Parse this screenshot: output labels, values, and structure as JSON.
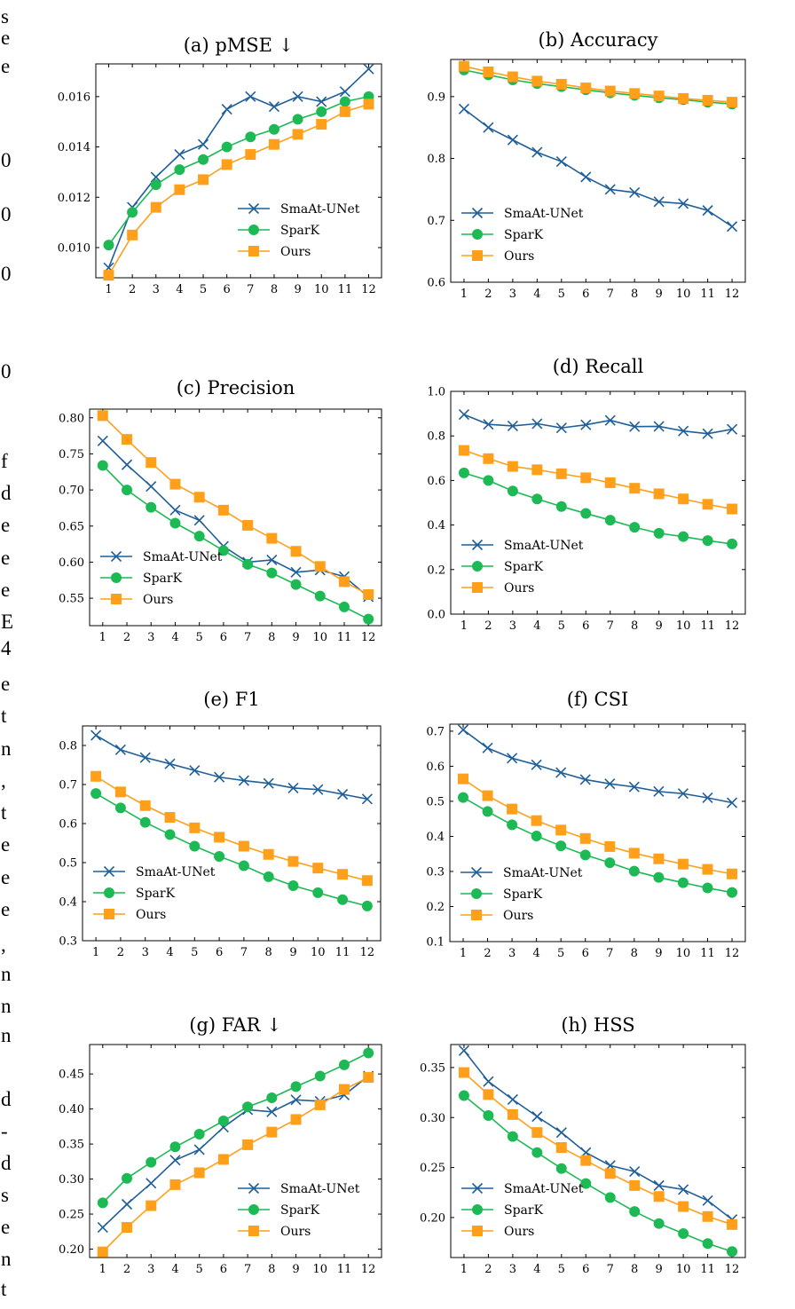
{
  "margin_text": [
    "s",
    "e",
    "e",
    "0",
    "0",
    "0",
    "0",
    "f",
    "d",
    "e",
    "e",
    "e",
    "E",
    "4",
    "e",
    "t",
    "n",
    ",",
    "t",
    "e",
    "e",
    "e",
    ",",
    "n",
    "n",
    "n",
    "d",
    "-",
    "d",
    "s",
    "e",
    "n",
    "t"
  ],
  "colors": {
    "SmaAt-UNet": "#1f5f99",
    "SparK": "#1db954",
    "Ours": "#ff9f1a"
  },
  "chart_data": [
    {
      "type": "line",
      "title": "(a) pMSE ↓",
      "x": [
        1,
        2,
        3,
        4,
        5,
        6,
        7,
        8,
        9,
        10,
        11,
        12
      ],
      "yticks": [
        0.01,
        0.012,
        0.014,
        0.016
      ],
      "ylim": [
        0.0088,
        0.0173
      ],
      "ytick_decimals": 3,
      "legend": "lower-right",
      "series": [
        {
          "name": "SmaAt-UNet",
          "marker": "x",
          "values": [
            0.0092,
            0.0116,
            0.0128,
            0.0137,
            0.0141,
            0.0155,
            0.016,
            0.0156,
            0.016,
            0.0158,
            0.0162,
            0.0171
          ]
        },
        {
          "name": "SparK",
          "marker": "circle",
          "values": [
            0.0101,
            0.0114,
            0.0125,
            0.0131,
            0.0135,
            0.014,
            0.0144,
            0.0147,
            0.0151,
            0.0154,
            0.0158,
            0.016
          ]
        },
        {
          "name": "Ours",
          "marker": "square",
          "values": [
            0.0089,
            0.0105,
            0.0116,
            0.0123,
            0.0127,
            0.0133,
            0.0137,
            0.0141,
            0.0145,
            0.0149,
            0.0154,
            0.0157
          ]
        }
      ]
    },
    {
      "type": "line",
      "title": "(b) Accuracy",
      "x": [
        1,
        2,
        3,
        4,
        5,
        6,
        7,
        8,
        9,
        10,
        11,
        12
      ],
      "yticks": [
        0.6,
        0.7,
        0.8,
        0.9
      ],
      "ylim": [
        0.6,
        0.96
      ],
      "ytick_decimals": 1,
      "legend": "lower-left",
      "series": [
        {
          "name": "SmaAt-UNet",
          "marker": "x",
          "values": [
            0.88,
            0.85,
            0.83,
            0.81,
            0.795,
            0.77,
            0.75,
            0.745,
            0.73,
            0.727,
            0.716,
            0.69
          ]
        },
        {
          "name": "SparK",
          "marker": "circle",
          "values": [
            0.943,
            0.935,
            0.927,
            0.921,
            0.916,
            0.911,
            0.906,
            0.902,
            0.898,
            0.895,
            0.891,
            0.888
          ]
        },
        {
          "name": "Ours",
          "marker": "square",
          "values": [
            0.949,
            0.94,
            0.932,
            0.925,
            0.92,
            0.914,
            0.909,
            0.905,
            0.901,
            0.897,
            0.894,
            0.891
          ]
        }
      ]
    },
    {
      "type": "line",
      "title": "(c) Precision",
      "x": [
        1,
        2,
        3,
        4,
        5,
        6,
        7,
        8,
        9,
        10,
        11,
        12
      ],
      "yticks": [
        0.55,
        0.6,
        0.65,
        0.7,
        0.75,
        0.8
      ],
      "ylim": [
        0.512,
        0.812
      ],
      "ytick_decimals": 2,
      "legend": "lower-left",
      "series": [
        {
          "name": "SmaAt-UNet",
          "marker": "x",
          "values": [
            0.768,
            0.735,
            0.705,
            0.672,
            0.658,
            0.622,
            0.6,
            0.603,
            0.586,
            0.589,
            0.58,
            0.552
          ]
        },
        {
          "name": "SparK",
          "marker": "circle",
          "values": [
            0.734,
            0.7,
            0.676,
            0.654,
            0.636,
            0.616,
            0.597,
            0.585,
            0.569,
            0.553,
            0.538,
            0.521
          ]
        },
        {
          "name": "Ours",
          "marker": "square",
          "values": [
            0.803,
            0.77,
            0.738,
            0.708,
            0.69,
            0.672,
            0.651,
            0.633,
            0.615,
            0.594,
            0.573,
            0.555
          ]
        }
      ]
    },
    {
      "type": "line",
      "title": "(d) Recall",
      "x": [
        1,
        2,
        3,
        4,
        5,
        6,
        7,
        8,
        9,
        10,
        11,
        12
      ],
      "yticks": [
        0.0,
        0.2,
        0.4,
        0.6,
        0.8,
        1.0
      ],
      "ylim": [
        0.0,
        1.0
      ],
      "ytick_decimals": 1,
      "legend": "lower-left",
      "series": [
        {
          "name": "SmaAt-UNet",
          "marker": "x",
          "values": [
            0.896,
            0.852,
            0.845,
            0.855,
            0.836,
            0.85,
            0.87,
            0.842,
            0.843,
            0.822,
            0.81,
            0.83
          ]
        },
        {
          "name": "SparK",
          "marker": "circle",
          "values": [
            0.634,
            0.6,
            0.553,
            0.517,
            0.483,
            0.452,
            0.422,
            0.39,
            0.363,
            0.348,
            0.33,
            0.315
          ]
        },
        {
          "name": "Ours",
          "marker": "square",
          "values": [
            0.735,
            0.698,
            0.663,
            0.648,
            0.63,
            0.612,
            0.59,
            0.565,
            0.54,
            0.517,
            0.493,
            0.472
          ]
        }
      ]
    },
    {
      "type": "line",
      "title": "(e) F1",
      "x": [
        1,
        2,
        3,
        4,
        5,
        6,
        7,
        8,
        9,
        10,
        11,
        12
      ],
      "yticks": [
        0.3,
        0.4,
        0.5,
        0.6,
        0.7,
        0.8
      ],
      "ylim": [
        0.3,
        0.85
      ],
      "ytick_decimals": 1,
      "legend": "lower-left",
      "series": [
        {
          "name": "SmaAt-UNet",
          "marker": "x",
          "values": [
            0.826,
            0.789,
            0.769,
            0.753,
            0.736,
            0.719,
            0.71,
            0.703,
            0.691,
            0.687,
            0.675,
            0.663
          ]
        },
        {
          "name": "SparK",
          "marker": "circle",
          "values": [
            0.677,
            0.64,
            0.603,
            0.572,
            0.542,
            0.516,
            0.492,
            0.464,
            0.441,
            0.423,
            0.405,
            0.389
          ]
        },
        {
          "name": "Ours",
          "marker": "square",
          "values": [
            0.721,
            0.681,
            0.646,
            0.616,
            0.589,
            0.565,
            0.542,
            0.521,
            0.503,
            0.486,
            0.47,
            0.454
          ]
        }
      ]
    },
    {
      "type": "line",
      "title": "(f) CSI",
      "x": [
        1,
        2,
        3,
        4,
        5,
        6,
        7,
        8,
        9,
        10,
        11,
        12
      ],
      "yticks": [
        0.1,
        0.2,
        0.3,
        0.4,
        0.5,
        0.6,
        0.7
      ],
      "ylim": [
        0.1,
        0.72
      ],
      "ytick_decimals": 1,
      "legend": "lower-left",
      "series": [
        {
          "name": "SmaAt-UNet",
          "marker": "x",
          "values": [
            0.704,
            0.652,
            0.623,
            0.604,
            0.582,
            0.562,
            0.55,
            0.541,
            0.528,
            0.522,
            0.51,
            0.496
          ]
        },
        {
          "name": "SparK",
          "marker": "circle",
          "values": [
            0.511,
            0.471,
            0.433,
            0.401,
            0.373,
            0.347,
            0.325,
            0.301,
            0.283,
            0.268,
            0.253,
            0.24
          ]
        },
        {
          "name": "Ours",
          "marker": "square",
          "values": [
            0.564,
            0.516,
            0.478,
            0.445,
            0.418,
            0.394,
            0.371,
            0.352,
            0.336,
            0.321,
            0.306,
            0.293
          ]
        }
      ]
    },
    {
      "type": "line",
      "title": "(g) FAR ↓",
      "x": [
        1,
        2,
        3,
        4,
        5,
        6,
        7,
        8,
        9,
        10,
        11,
        12
      ],
      "yticks": [
        0.2,
        0.25,
        0.3,
        0.35,
        0.4,
        0.45
      ],
      "ylim": [
        0.188,
        0.492
      ],
      "ytick_decimals": 2,
      "legend": "lower-right",
      "series": [
        {
          "name": "SmaAt-UNet",
          "marker": "x",
          "values": [
            0.231,
            0.264,
            0.294,
            0.327,
            0.342,
            0.374,
            0.399,
            0.396,
            0.413,
            0.411,
            0.42,
            0.447
          ]
        },
        {
          "name": "SparK",
          "marker": "circle",
          "values": [
            0.266,
            0.301,
            0.324,
            0.346,
            0.364,
            0.383,
            0.403,
            0.416,
            0.432,
            0.447,
            0.463,
            0.48
          ]
        },
        {
          "name": "Ours",
          "marker": "square",
          "values": [
            0.196,
            0.231,
            0.262,
            0.292,
            0.309,
            0.328,
            0.349,
            0.367,
            0.385,
            0.406,
            0.428,
            0.445
          ]
        }
      ]
    },
    {
      "type": "line",
      "title": "(h) HSS",
      "x": [
        1,
        2,
        3,
        4,
        5,
        6,
        7,
        8,
        9,
        10,
        11,
        12
      ],
      "yticks": [
        0.2,
        0.25,
        0.3,
        0.35
      ],
      "ylim": [
        0.16,
        0.373
      ],
      "ytick_decimals": 2,
      "legend": "lower-left",
      "series": [
        {
          "name": "SmaAt-UNet",
          "marker": "x",
          "values": [
            0.367,
            0.336,
            0.318,
            0.301,
            0.285,
            0.265,
            0.252,
            0.246,
            0.232,
            0.228,
            0.217,
            0.198
          ]
        },
        {
          "name": "SparK",
          "marker": "circle",
          "values": [
            0.322,
            0.302,
            0.281,
            0.265,
            0.249,
            0.234,
            0.22,
            0.206,
            0.194,
            0.184,
            0.174,
            0.166
          ]
        },
        {
          "name": "Ours",
          "marker": "square",
          "values": [
            0.345,
            0.323,
            0.303,
            0.285,
            0.27,
            0.257,
            0.244,
            0.232,
            0.221,
            0.211,
            0.201,
            0.193
          ]
        }
      ]
    }
  ]
}
